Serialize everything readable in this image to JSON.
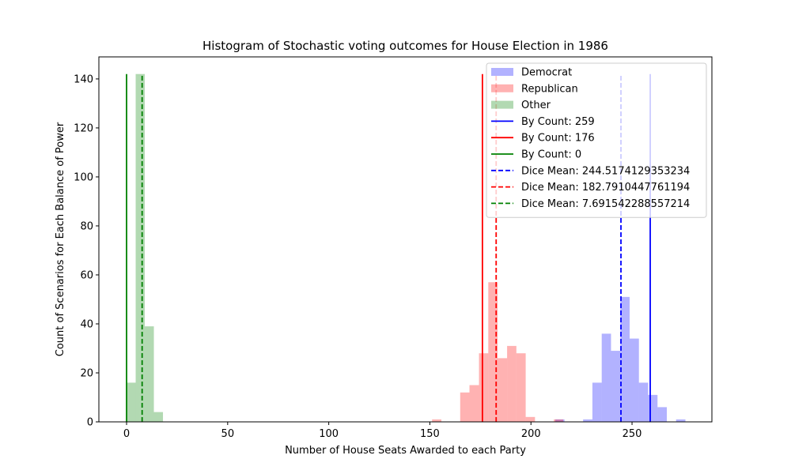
{
  "chart_data": {
    "type": "bar",
    "title": "Histogram of Stochastic voting outcomes for House Election in 1986",
    "xlabel": "Number of House Seats Awarded to each Party",
    "ylabel": "Count of Scenarios for Each Balance of Power",
    "xlim": [
      -13.7,
      289.5
    ],
    "ylim": [
      0,
      149
    ],
    "xticks": [
      0,
      50,
      100,
      150,
      200,
      250
    ],
    "yticks": [
      0,
      20,
      40,
      60,
      80,
      100,
      120,
      140
    ],
    "colors": {
      "democrat": "#0000ff",
      "republican": "#ff0000",
      "other": "#008000"
    },
    "histograms": [
      {
        "name": "Democrat",
        "color": "#0000ff",
        "alpha": 0.3,
        "bins": [
          {
            "x0": 212,
            "x1": 216.6,
            "count": 1
          },
          {
            "x0": 225.8,
            "x1": 230.4,
            "count": 1
          },
          {
            "x0": 230.4,
            "x1": 235,
            "count": 16
          },
          {
            "x0": 235,
            "x1": 239.6,
            "count": 36
          },
          {
            "x0": 239.6,
            "x1": 244.2,
            "count": 29
          },
          {
            "x0": 244.2,
            "x1": 248.8,
            "count": 51
          },
          {
            "x0": 248.8,
            "x1": 253.4,
            "count": 34
          },
          {
            "x0": 253.4,
            "x1": 258,
            "count": 16
          },
          {
            "x0": 258,
            "x1": 262.6,
            "count": 11
          },
          {
            "x0": 262.6,
            "x1": 267.2,
            "count": 6
          },
          {
            "x0": 271.8,
            "x1": 276.4,
            "count": 1
          }
        ]
      },
      {
        "name": "Republican",
        "color": "#ff0000",
        "alpha": 0.3,
        "bins": [
          {
            "x0": 151.1,
            "x1": 155.7,
            "count": 1
          },
          {
            "x0": 165,
            "x1": 169.6,
            "count": 12
          },
          {
            "x0": 169.6,
            "x1": 174.3,
            "count": 15
          },
          {
            "x0": 174.3,
            "x1": 178.9,
            "count": 28
          },
          {
            "x0": 178.9,
            "x1": 183.5,
            "count": 57
          },
          {
            "x0": 183.5,
            "x1": 188.2,
            "count": 26
          },
          {
            "x0": 188.2,
            "x1": 192.8,
            "count": 31
          },
          {
            "x0": 192.8,
            "x1": 197.4,
            "count": 28
          },
          {
            "x0": 197.4,
            "x1": 202,
            "count": 2
          },
          {
            "x0": 211.3,
            "x1": 216,
            "count": 1
          }
        ]
      },
      {
        "name": "Other",
        "color": "#008000",
        "alpha": 0.3,
        "bins": [
          {
            "x0": 0,
            "x1": 4.5,
            "count": 16
          },
          {
            "x0": 4.5,
            "x1": 9,
            "count": 142
          },
          {
            "x0": 9,
            "x1": 13.5,
            "count": 39
          },
          {
            "x0": 13.5,
            "x1": 18,
            "count": 4
          }
        ]
      }
    ],
    "vlines": [
      {
        "label": "By Count: 259",
        "x": 259,
        "color": "#0000ff",
        "style": "solid"
      },
      {
        "label": "By Count: 176",
        "x": 176,
        "color": "#ff0000",
        "style": "solid"
      },
      {
        "label": "By Count: 0",
        "x": 0,
        "color": "#008000",
        "style": "solid"
      },
      {
        "label": "Dice Mean: 244.5174129353234",
        "x": 244.5174129353234,
        "color": "#0000ff",
        "style": "dashed"
      },
      {
        "label": "Dice Mean: 182.7910447761194",
        "x": 182.7910447761194,
        "color": "#ff0000",
        "style": "dashed"
      },
      {
        "label": "Dice Mean: 7.691542288557214",
        "x": 7.691542288557214,
        "color": "#008000",
        "style": "dashed"
      }
    ],
    "vline_ymax": 142,
    "legend_placement": "top-right",
    "legend": [
      {
        "label": "Democrat",
        "kind": "patch",
        "color": "#0000ff"
      },
      {
        "label": "Republican",
        "kind": "patch",
        "color": "#ff0000"
      },
      {
        "label": "Other",
        "kind": "patch",
        "color": "#008000"
      },
      {
        "label": "By Count: 259",
        "kind": "solid",
        "color": "#0000ff"
      },
      {
        "label": "By Count: 176",
        "kind": "solid",
        "color": "#ff0000"
      },
      {
        "label": "By Count: 0",
        "kind": "solid",
        "color": "#008000"
      },
      {
        "label": "Dice Mean: 244.5174129353234",
        "kind": "dashed",
        "color": "#0000ff"
      },
      {
        "label": "Dice Mean: 182.7910447761194",
        "kind": "dashed",
        "color": "#ff0000"
      },
      {
        "label": "Dice Mean: 7.691542288557214",
        "kind": "dashed",
        "color": "#008000"
      }
    ],
    "grid": false
  }
}
